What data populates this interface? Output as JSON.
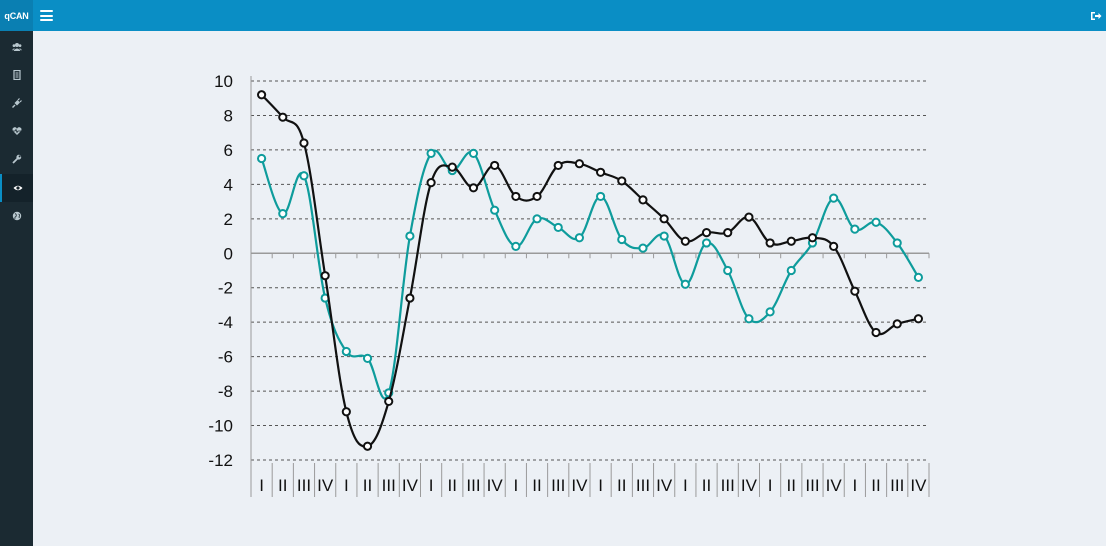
{
  "app": {
    "brand": "qCAN"
  },
  "header": {
    "menu_icon": "hamburger-icon",
    "signout_icon": "sign-out-icon"
  },
  "sidebar": {
    "items": [
      {
        "icon": "users-icon"
      },
      {
        "icon": "file-icon"
      },
      {
        "icon": "plug-icon"
      },
      {
        "icon": "heartbeat-icon"
      },
      {
        "icon": "wrench-icon"
      },
      {
        "icon": "eye-icon",
        "active": true
      },
      {
        "icon": "globe-icon"
      }
    ]
  },
  "chart_data": {
    "type": "line",
    "title": "",
    "xlabel": "",
    "ylabel": "",
    "ylim": [
      -12,
      10
    ],
    "yticks": [
      10,
      8,
      6,
      4,
      2,
      0,
      -2,
      -4,
      -6,
      -8,
      -10,
      -12
    ],
    "grid": "horizontal-dashed",
    "categories": [
      "I",
      "II",
      "III",
      "IV",
      "I",
      "II",
      "III",
      "IV",
      "I",
      "II",
      "III",
      "IV",
      "I",
      "II",
      "III",
      "IV",
      "I",
      "II",
      "III",
      "IV",
      "I",
      "II",
      "III",
      "IV",
      "I",
      "II",
      "III",
      "IV",
      "I",
      "II",
      "III",
      "IV"
    ],
    "series": [
      {
        "color": "#111111",
        "values": [
          9.2,
          7.9,
          6.4,
          -1.3,
          -9.2,
          -11.2,
          -8.6,
          -2.6,
          4.1,
          5.0,
          3.8,
          5.1,
          3.3,
          3.3,
          5.1,
          5.2,
          4.7,
          4.2,
          3.1,
          2.0,
          0.7,
          1.2,
          1.2,
          2.1,
          0.6,
          0.7,
          0.9,
          0.4,
          -2.2,
          -4.6,
          -4.1,
          -3.8
        ]
      },
      {
        "color": "#0e9c9c",
        "values": [
          5.5,
          2.3,
          4.5,
          -2.6,
          -5.7,
          -6.1,
          -8.1,
          1.0,
          5.8,
          4.8,
          5.8,
          2.5,
          0.4,
          2.0,
          1.5,
          0.9,
          3.3,
          0.8,
          0.3,
          1.0,
          -1.8,
          0.6,
          -1.0,
          -3.8,
          -3.4,
          -1.0,
          0.6,
          3.2,
          1.4,
          1.8,
          0.6,
          -1.4
        ]
      }
    ]
  }
}
